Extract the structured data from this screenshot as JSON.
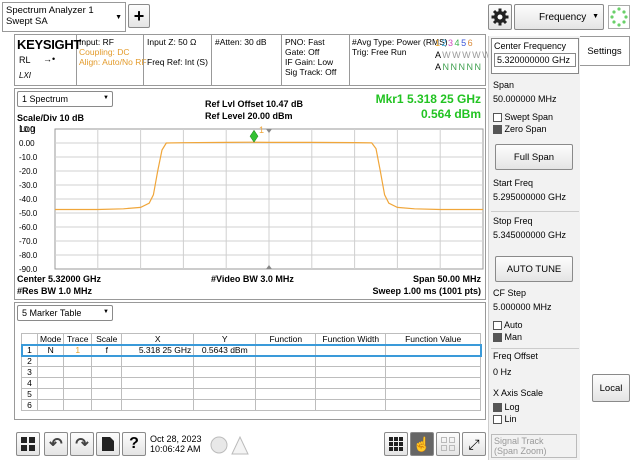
{
  "top": {
    "mode_line1": "Spectrum Analyzer 1",
    "mode_line2": "Swept SA",
    "add_symbol": "+",
    "dropdown_value": "Frequency"
  },
  "status": {
    "brand": "KEYSIGHT",
    "rl": "RL",
    "lxi": "LXI",
    "input": "Input: RF",
    "coupling": "Coupling: DC",
    "align": "Align: Auto/No RF",
    "input_z": "Input Z: 50 Ω",
    "freq_ref": "Freq Ref: Int (S)",
    "atten": "#Atten: 30 dB",
    "pno": "PNO: Fast",
    "gate": "Gate: Off",
    "if_gain": "IF Gain: Low",
    "sig_track": "Sig Track: Off",
    "avg_type": "#Avg Type: Power (RMS)",
    "trig": "Trig: Free Run",
    "trace_nums": [
      "1",
      "2",
      "3",
      "4",
      "5",
      "6"
    ],
    "trace_types": [
      "A",
      "W",
      "W",
      "W",
      "W",
      "W"
    ],
    "trace_dets": [
      "A",
      "N",
      "N",
      "N",
      "N",
      "N"
    ]
  },
  "chart_header": {
    "window": "1 Spectrum",
    "scale": "Scale/Div 10 dB",
    "ref_offset": "Ref Lvl Offset 10.47 dB",
    "ref_level": "Ref Level 20.00 dBm",
    "mkr_label": "Mkr1  5.318 25 GHz",
    "mkr_value": "0.564 dBm",
    "log": "Log",
    "marker_num": "1"
  },
  "chart_data": {
    "type": "line",
    "x_start": 5.295,
    "x_stop": 5.345,
    "x_unit": "GHz",
    "ylim": [
      -90,
      10
    ],
    "y_ticks": [
      "10.0",
      "0.00",
      "-10.0",
      "-20.0",
      "-30.0",
      "-40.0",
      "-50.0",
      "-60.0",
      "-70.0",
      "-80.0",
      "-90.0"
    ],
    "grid": true,
    "series": [
      {
        "x": [
          5.295,
          5.3,
          5.303,
          5.305,
          5.306,
          5.3065,
          5.307,
          5.3075,
          5.308,
          5.31,
          5.315,
          5.318,
          5.32,
          5.325,
          5.33,
          5.332,
          5.3325,
          5.333,
          5.3335,
          5.334,
          5.335,
          5.337,
          5.34,
          5.345
        ],
        "y": [
          -47.5,
          -47.5,
          -47,
          -46,
          -43,
          -37,
          -20,
          -5,
          0,
          0.2,
          0.4,
          0.56,
          0.4,
          0.4,
          0.3,
          0.1,
          -4,
          -20,
          -37,
          -43,
          -46,
          -47,
          -47.5,
          -47.5
        ]
      }
    ],
    "marker": {
      "x": 5.31825,
      "y": 0.564
    }
  },
  "chart_footer": {
    "center": "Center 5.32000 GHz",
    "res_bw": "#Res BW 1.0 MHz",
    "video_bw": "#Video BW 3.0 MHz",
    "span": "Span 50.00 MHz",
    "sweep": "Sweep 1.00 ms (1001 pts)"
  },
  "marker_table": {
    "window": "5 Marker Table",
    "headers": [
      "Mode",
      "Trace",
      "Scale",
      "X",
      "Y",
      "Function",
      "Function Width",
      "Function Value"
    ],
    "rows": [
      [
        "1",
        "N",
        "1",
        "f",
        "5.318 25 GHz",
        "0.5643 dBm",
        "",
        "",
        ""
      ],
      [
        "2",
        "",
        "",
        "",
        "",
        "",
        "",
        "",
        ""
      ],
      [
        "3",
        "",
        "",
        "",
        "",
        "",
        "",
        "",
        ""
      ],
      [
        "4",
        "",
        "",
        "",
        "",
        "",
        "",
        "",
        ""
      ],
      [
        "5",
        "",
        "",
        "",
        "",
        "",
        "",
        "",
        ""
      ],
      [
        "6",
        "",
        "",
        "",
        "",
        "",
        "",
        "",
        ""
      ]
    ]
  },
  "right_panel": {
    "center_freq_label": "Center Frequency",
    "center_freq_value": "5.320000000 GHz",
    "settings": "Settings",
    "span_label": "Span",
    "span_value": "50.000000 MHz",
    "swept_span": "Swept Span",
    "zero_span": "Zero Span",
    "full_span": "Full Span",
    "start_label": "Start Freq",
    "start_value": "5.295000000 GHz",
    "stop_label": "Stop Freq",
    "stop_value": "5.345000000 GHz",
    "auto_tune": "AUTO TUNE",
    "cf_step_label": "CF Step",
    "cf_step_value": "5.000000 MHz",
    "auto": "Auto",
    "man": "Man",
    "freq_offset_label": "Freq Offset",
    "freq_offset_value": "0 Hz",
    "x_axis_label": "X Axis Scale",
    "log": "Log",
    "lin": "Lin",
    "signal_track": "Signal Track",
    "span_zoom": "(Span Zoom)",
    "local": "Local"
  },
  "taskbar": {
    "date": "Oct 28, 2023",
    "time": "10:06:42 AM"
  }
}
